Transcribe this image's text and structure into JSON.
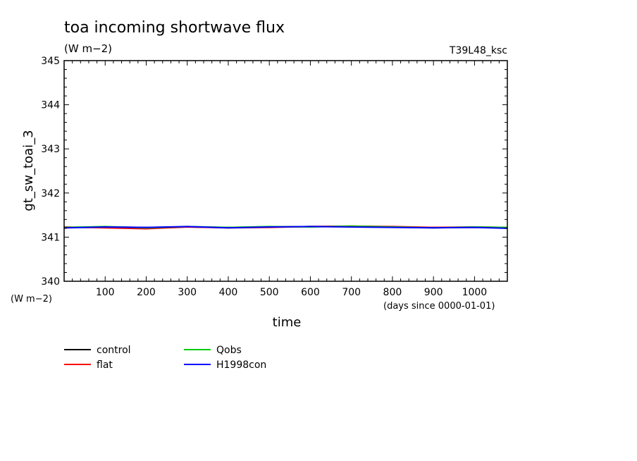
{
  "chart_data": {
    "type": "line",
    "title": "toa incoming shortwave flux",
    "subtitle": "(W m−2)",
    "tag": "T39L48_ksc",
    "xlabel": "time",
    "xunit": "(days since 0000-01-01)",
    "ylabel": "gt_sw_toai_3",
    "yunit": "(W m−2)",
    "xlim": [
      0,
      1080
    ],
    "ylim": [
      340,
      345
    ],
    "xticks": [
      100,
      200,
      300,
      400,
      500,
      600,
      700,
      800,
      900,
      1000
    ],
    "xtick_labels": [
      "100",
      "200",
      "300",
      "400",
      "500",
      "600",
      "700",
      "800",
      "900",
      "1000"
    ],
    "yticks": [
      340,
      341,
      342,
      343,
      344,
      345
    ],
    "ytick_labels": [
      "340",
      "341",
      "342",
      "343",
      "344",
      "345"
    ],
    "grid": false,
    "legend_position": "bottom-left",
    "series": [
      {
        "name": "control",
        "color": "#000000",
        "x": [
          0,
          100,
          200,
          300,
          400,
          500,
          600,
          700,
          800,
          900,
          1000,
          1080
        ],
        "y": [
          341.22,
          341.23,
          341.22,
          341.23,
          341.22,
          341.23,
          341.24,
          341.24,
          341.23,
          341.22,
          341.22,
          341.22
        ]
      },
      {
        "name": "flat",
        "color": "#ff0000",
        "x": [
          0,
          100,
          200,
          300,
          400,
          500,
          600,
          700,
          800,
          900,
          1000,
          1080
        ],
        "y": [
          341.23,
          341.21,
          341.19,
          341.23,
          341.21,
          341.22,
          341.24,
          341.25,
          341.24,
          341.22,
          341.23,
          341.22
        ]
      },
      {
        "name": "Qobs",
        "color": "#00cc00",
        "x": [
          0,
          100,
          200,
          300,
          400,
          500,
          600,
          700,
          800,
          900,
          1000,
          1080
        ],
        "y": [
          341.22,
          341.24,
          341.21,
          341.24,
          341.22,
          341.24,
          341.23,
          341.25,
          341.23,
          341.21,
          341.23,
          341.22
        ]
      },
      {
        "name": "H1998con",
        "color": "#0000ff",
        "x": [
          0,
          100,
          200,
          300,
          400,
          500,
          600,
          700,
          800,
          900,
          1000,
          1080
        ],
        "y": [
          341.21,
          341.23,
          341.22,
          341.24,
          341.21,
          341.23,
          341.24,
          341.23,
          341.22,
          341.21,
          341.22,
          341.2
        ]
      }
    ]
  }
}
